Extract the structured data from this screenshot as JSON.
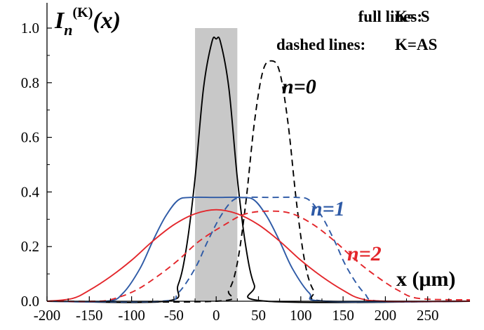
{
  "chart_data": {
    "type": "line",
    "title": "",
    "ylabel_parts": {
      "main": "I",
      "sub": "n",
      "sup": "(K)",
      "arg": "(x)"
    },
    "xlabel": "x (μm)",
    "xlim": [
      -200,
      300
    ],
    "ylim": [
      0,
      1.05
    ],
    "x_ticks": [
      -200,
      -150,
      -100,
      -50,
      0,
      50,
      100,
      150,
      200,
      250
    ],
    "x_tick_labels": [
      "-200",
      "-150",
      "-100",
      "-50",
      "0",
      "50",
      "100",
      "150",
      "200",
      "250"
    ],
    "y_ticks": [
      0.0,
      0.2,
      0.4,
      0.6,
      0.8,
      1.0
    ],
    "y_tick_labels": [
      "0.0",
      "0.2",
      "0.4",
      "0.6",
      "0.8",
      "1.0"
    ],
    "shaded_region": {
      "x": [
        -25,
        25
      ],
      "y": [
        0,
        1.0
      ],
      "color": "#c8c8c8"
    },
    "legend": [
      {
        "label": "full lines:",
        "value": "K= S"
      },
      {
        "label": "dashed lines:",
        "value": "K=AS"
      }
    ],
    "curve_labels": [
      {
        "text": "n=0",
        "color": "#000000"
      },
      {
        "text": "n=1",
        "color": "#2e5aa6"
      },
      {
        "text": "n=2",
        "color": "#e3262b"
      }
    ],
    "series": [
      {
        "n": 0,
        "mode": "S",
        "style": "solid",
        "color": "#000000",
        "x": [
          -200,
          -60,
          -45,
          -35,
          -25,
          -15,
          -5,
          0,
          5,
          15,
          25,
          35,
          45,
          60,
          300
        ],
        "y": [
          0,
          0,
          0.06,
          0.2,
          0.45,
          0.78,
          0.95,
          0.96,
          0.95,
          0.78,
          0.45,
          0.2,
          0.06,
          0,
          0
        ]
      },
      {
        "n": 0,
        "mode": "AS",
        "style": "dashed",
        "color": "#000000",
        "x": [
          -200,
          0,
          15,
          25,
          35,
          45,
          55,
          65,
          75,
          85,
          95,
          105,
          115,
          130,
          300
        ],
        "y": [
          0,
          0,
          0.04,
          0.14,
          0.36,
          0.65,
          0.84,
          0.88,
          0.84,
          0.65,
          0.36,
          0.14,
          0.04,
          0,
          0
        ]
      },
      {
        "n": 1,
        "mode": "S",
        "style": "solid",
        "color": "#2e5aa6",
        "x": [
          -200,
          -130,
          -110,
          -90,
          -75,
          -60,
          -45,
          -30,
          0,
          30,
          45,
          60,
          75,
          90,
          110,
          130,
          300
        ],
        "y": [
          0,
          0,
          0.03,
          0.12,
          0.22,
          0.31,
          0.37,
          0.38,
          0.38,
          0.38,
          0.37,
          0.31,
          0.22,
          0.12,
          0.03,
          0,
          0
        ]
      },
      {
        "n": 1,
        "mode": "AS",
        "style": "dashed",
        "color": "#2e5aa6",
        "x": [
          -200,
          -65,
          -45,
          -25,
          -10,
          5,
          20,
          35,
          65,
          95,
          110,
          125,
          140,
          155,
          175,
          195,
          300
        ],
        "y": [
          0,
          0,
          0.03,
          0.12,
          0.22,
          0.31,
          0.37,
          0.38,
          0.38,
          0.38,
          0.37,
          0.31,
          0.22,
          0.12,
          0.03,
          0,
          0
        ]
      },
      {
        "n": 2,
        "mode": "S",
        "style": "solid",
        "color": "#e3262b",
        "x": [
          -200,
          -170,
          -150,
          -125,
          -100,
          -75,
          -50,
          -25,
          0,
          25,
          50,
          75,
          100,
          125,
          150,
          170,
          200,
          300
        ],
        "y": [
          0,
          0.01,
          0.04,
          0.09,
          0.15,
          0.22,
          0.28,
          0.32,
          0.335,
          0.32,
          0.28,
          0.22,
          0.15,
          0.09,
          0.04,
          0.01,
          0,
          0
        ]
      },
      {
        "n": 2,
        "mode": "AS",
        "style": "dashed",
        "color": "#e3262b",
        "x": [
          -200,
          -140,
          -120,
          -95,
          -70,
          -45,
          -20,
          10,
          35,
          65,
          90,
          115,
          140,
          165,
          190,
          215,
          240,
          300
        ],
        "y": [
          0,
          0,
          0.01,
          0.04,
          0.09,
          0.15,
          0.22,
          0.28,
          0.32,
          0.33,
          0.32,
          0.28,
          0.22,
          0.15,
          0.09,
          0.04,
          0.01,
          0.005
        ]
      }
    ]
  }
}
